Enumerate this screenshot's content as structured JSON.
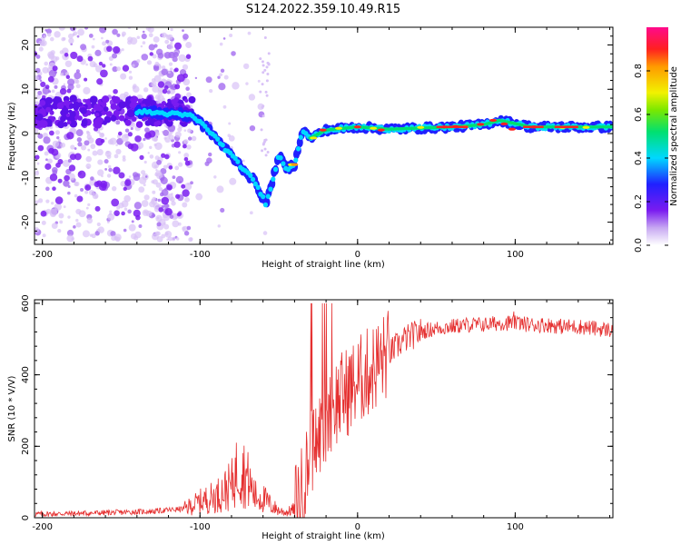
{
  "figure_title": "S124.2022.359.10.49.R15",
  "colors": {
    "snr_line": "#e53030",
    "axis": "#000000"
  },
  "chart_data": [
    {
      "type": "heatmap",
      "title": "S124.2022.359.10.49.R15",
      "xlabel": "Height of straight line (km)",
      "ylabel": "Frequency (Hz)",
      "xlim": [
        -205,
        162
      ],
      "ylim": [
        -25,
        24
      ],
      "x_ticks": [
        -200,
        -100,
        0,
        100
      ],
      "y_ticks": [
        20,
        10,
        0,
        -10,
        -20
      ],
      "colorbar": {
        "label": "Normalized spectral amplitude",
        "range": [
          0,
          1
        ],
        "ticks": [
          0.0,
          0.2,
          0.4,
          0.6,
          0.8
        ]
      },
      "ridge": {
        "x": [
          -140,
          -120,
          -105,
          -95,
          -85,
          -75,
          -65,
          -58,
          -50,
          -45,
          -40,
          -35,
          -30,
          -20,
          0,
          20,
          60,
          80,
          90,
          110,
          162
        ],
        "frequency": [
          5,
          4.5,
          4,
          1,
          -3,
          -7,
          -11,
          -16,
          -5,
          -8,
          -7,
          1,
          -1,
          0.8,
          1.5,
          1,
          1.5,
          2,
          3,
          1.5,
          1.5
        ]
      }
    },
    {
      "type": "line",
      "xlabel": "Height of straight line (km)",
      "ylabel": "SNR (10 * V/V)",
      "xlim": [
        -205,
        162
      ],
      "ylim": [
        0,
        610
      ],
      "x_ticks": [
        -200,
        -100,
        0,
        100
      ],
      "y_ticks": [
        0,
        200,
        400,
        600
      ],
      "series": [
        {
          "name": "SNR",
          "x": [
            -205,
            -180,
            -150,
            -130,
            -110,
            -100,
            -90,
            -80,
            -75,
            -70,
            -65,
            -60,
            -55,
            -50,
            -45,
            -40,
            -35,
            -30,
            -25,
            -20,
            -15,
            -10,
            -5,
            0,
            5,
            10,
            15,
            20,
            25,
            30,
            40,
            50,
            60,
            70,
            80,
            90,
            100,
            110,
            120,
            130,
            140,
            150,
            162
          ],
          "values": [
            10,
            12,
            15,
            18,
            25,
            45,
            60,
            90,
            150,
            110,
            60,
            55,
            35,
            20,
            15,
            25,
            80,
            180,
            220,
            280,
            320,
            340,
            360,
            380,
            400,
            420,
            440,
            460,
            480,
            500,
            520,
            530,
            535,
            540,
            540,
            545,
            545,
            540,
            540,
            535,
            535,
            530,
            525
          ]
        }
      ]
    }
  ]
}
